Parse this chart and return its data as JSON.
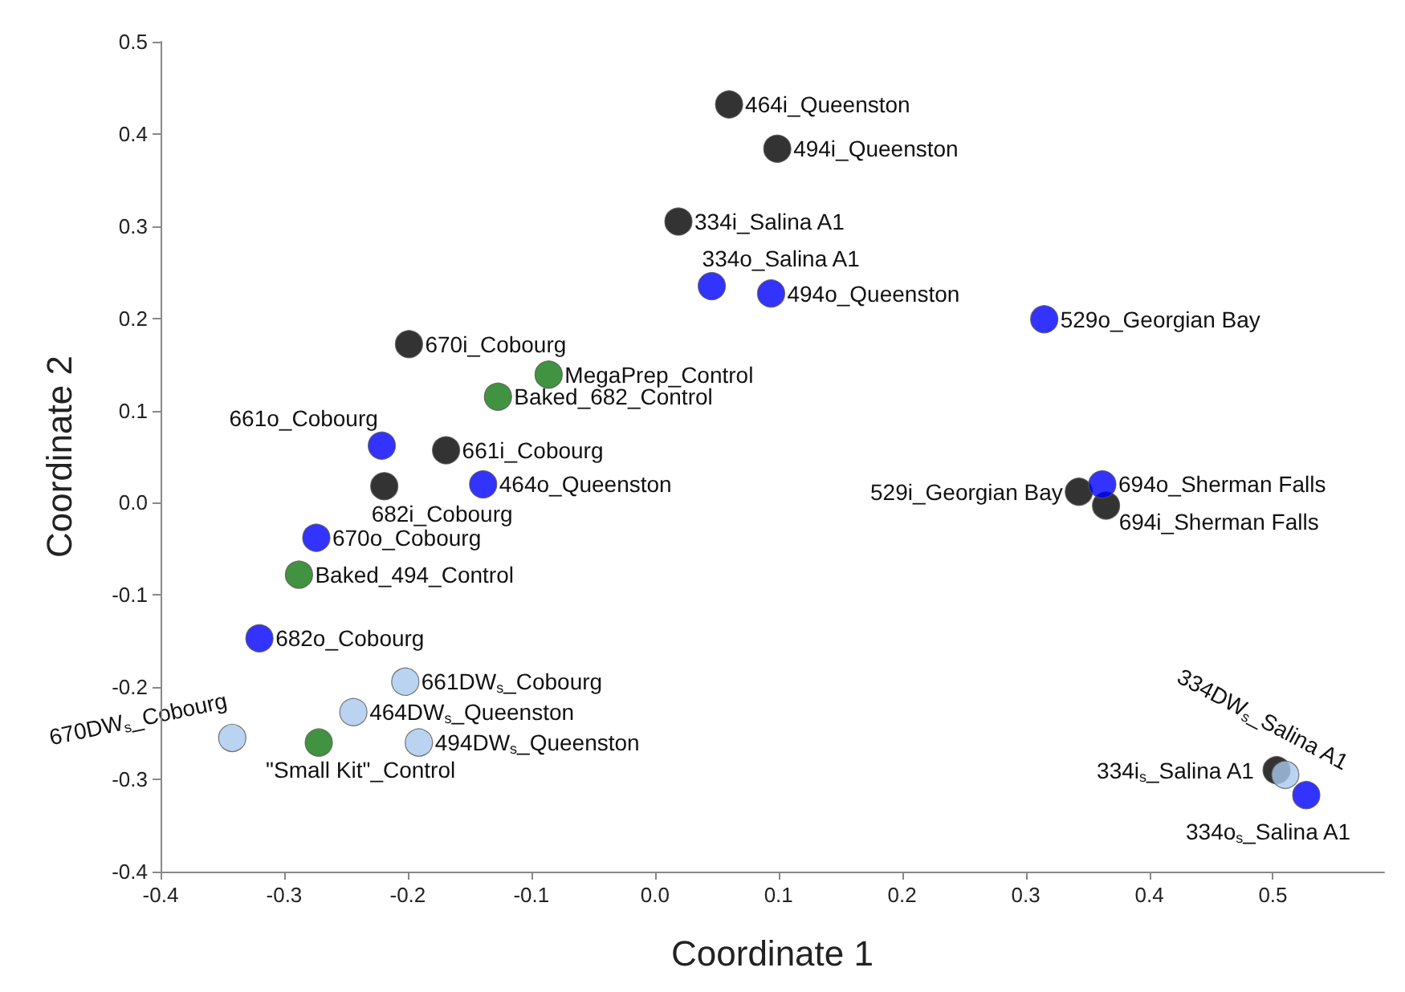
{
  "chart_data": {
    "type": "scatter",
    "xlabel": "Coordinate 1",
    "ylabel": "Coordinate 2",
    "xlim": [
      -0.4,
      0.59
    ],
    "ylim": [
      -0.4,
      0.5
    ],
    "xticks": [
      -0.4,
      -0.3,
      -0.2,
      -0.1,
      {
        "value": 0,
        "label": "0.0"
      },
      0.1,
      0.2,
      0.3,
      0.4,
      0.5
    ],
    "yticks": [
      -0.4,
      -0.3,
      -0.2,
      -0.1,
      {
        "value": 0,
        "label": "0.0"
      },
      0.1,
      0.2,
      0.3,
      0.4,
      0.5
    ],
    "grid": false,
    "marker": "circle",
    "series": [
      {
        "color": "#000000",
        "x": [
          0.06,
          0.099,
          0.019,
          -0.199,
          -0.169,
          -0.219,
          0.343,
          0.365,
          0.503
        ],
        "values": [
          0.432,
          0.384,
          0.305,
          0.172,
          0.057,
          0.018,
          0.012,
          -0.003,
          -0.29
        ]
      },
      {
        "color": "#0000ff",
        "x": [
          0.046,
          0.094,
          0.315,
          -0.221,
          -0.139,
          -0.274,
          -0.32,
          0.362,
          0.527
        ],
        "values": [
          0.235,
          0.227,
          0.199,
          0.062,
          0.02,
          -0.038,
          -0.147,
          0.02,
          -0.317
        ]
      },
      {
        "color": "#117711",
        "x": [
          -0.086,
          -0.127,
          -0.288,
          -0.272
        ],
        "values": [
          0.139,
          0.115,
          -0.078,
          -0.26
        ]
      },
      {
        "color": "#a9c8ee",
        "x": [
          -0.202,
          -0.244,
          -0.342,
          -0.191,
          0.51
        ],
        "values": [
          -0.194,
          -0.227,
          -0.255,
          -0.26,
          -0.295
        ]
      }
    ],
    "annotations": [
      {
        "text": "464i_Queenston",
        "x": 0.06,
        "y": 0.432
      },
      {
        "text": "494i_Queenston",
        "x": 0.099,
        "y": 0.384
      },
      {
        "text": "334i_Salina A1",
        "x": 0.019,
        "y": 0.305
      },
      {
        "text": "670i_Cobourg",
        "x": -0.199,
        "y": 0.172
      },
      {
        "text": "661i_Cobourg",
        "x": -0.169,
        "y": 0.057
      },
      {
        "text": "682i_Cobourg",
        "x": -0.219,
        "y": 0.018
      },
      {
        "text": "529i_Georgian Bay",
        "x": 0.343,
        "y": 0.012
      },
      {
        "text": "694i_Sherman Falls",
        "x": 0.365,
        "y": -0.003
      },
      {
        "text": "334i$_{s}$_Salina A1",
        "x": 0.503,
        "y": -0.29
      },
      {
        "text": "334o_Salina A1",
        "x": 0.046,
        "y": 0.235
      },
      {
        "text": "494o_Queenston",
        "x": 0.094,
        "y": 0.227
      },
      {
        "text": "529o_Georgian Bay",
        "x": 0.315,
        "y": 0.199
      },
      {
        "text": "661o_Cobourg",
        "x": -0.221,
        "y": 0.062
      },
      {
        "text": "464o_Queenston",
        "x": -0.139,
        "y": 0.02
      },
      {
        "text": "670o_Cobourg",
        "x": -0.274,
        "y": -0.038
      },
      {
        "text": "682o_Cobourg",
        "x": -0.32,
        "y": -0.147
      },
      {
        "text": "694o_Sherman Falls",
        "x": 0.362,
        "y": 0.02
      },
      {
        "text": "334o$_{s}$_Salina A1",
        "x": 0.527,
        "y": -0.317
      },
      {
        "text": "MegaPrep_Control",
        "x": -0.086,
        "y": 0.139
      },
      {
        "text": "Baked_682_Control",
        "x": -0.127,
        "y": 0.115
      },
      {
        "text": "Baked_494_Control",
        "x": -0.288,
        "y": -0.078
      },
      {
        "text": "\"Small Kit\"_Control",
        "x": -0.272,
        "y": -0.26
      },
      {
        "text": "661DW$_{s}$_Cobourg",
        "x": -0.202,
        "y": -0.194
      },
      {
        "text": "464DW$_{s}$_Queenston",
        "x": -0.244,
        "y": -0.227
      },
      {
        "text": "670DW$_{s}$_Cobourg",
        "x": -0.342,
        "y": -0.255
      },
      {
        "text": "494DW$_{s}$_Queenston",
        "x": -0.191,
        "y": -0.26
      },
      {
        "text": "334DW$_{s}$_Salina A1",
        "x": 0.51,
        "y": -0.295
      }
    ]
  }
}
